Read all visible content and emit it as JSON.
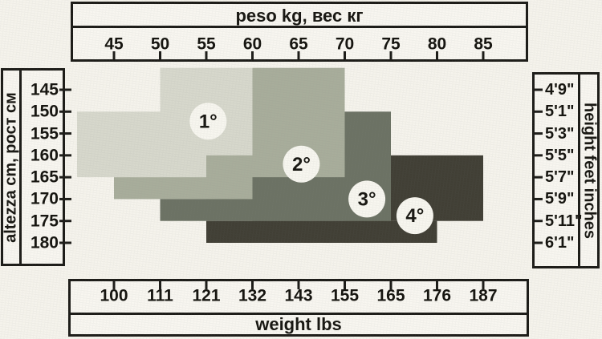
{
  "page": {
    "background": "#f5f3ec",
    "line_color": "#1c1b17",
    "text_color": "#171611",
    "circle_fill": "#f7f6ef"
  },
  "chart_data": {
    "type": "area",
    "title": "peso kg, вес кг",
    "description_visible_text_only": "overlapping stepped size regions 1°-4° on weight(kg/lbs) x height(cm/feet) grid",
    "top_axis": {
      "title": "peso kg, вес кг",
      "unit": "kg",
      "ticks": [
        45,
        50,
        55,
        60,
        65,
        70,
        75,
        80,
        85
      ]
    },
    "bottom_axis": {
      "label": "weight lbs",
      "unit": "lbs",
      "ticks": [
        100,
        111,
        121,
        132,
        143,
        155,
        165,
        176,
        187
      ]
    },
    "left_axis": {
      "label": "altezza cm, рост см",
      "unit": "cm",
      "ticks": [
        145,
        150,
        155,
        160,
        165,
        170,
        175,
        180
      ]
    },
    "right_axis": {
      "label": "height feet inches",
      "unit": "ft-in",
      "ticks": [
        "4'9\"",
        "5'1\"",
        "5'3\"",
        "5'5\"",
        "5'7\"",
        "5'9\"",
        "5'11\"",
        "6'1\""
      ]
    },
    "axis_ranges": {
      "kg": [
        45,
        85
      ],
      "cm": [
        145,
        180
      ]
    },
    "grid": false,
    "sizes": [
      {
        "label": "1°",
        "color": "#d7d8cc",
        "circle": {
          "kg": 55.2,
          "cm": 152.2
        },
        "regions": [
          {
            "kg": [
              50,
              60
            ],
            "cm": [
              140,
              165
            ]
          },
          {
            "kg": [
              41,
              60
            ],
            "cm": [
              150,
              165
            ]
          }
        ]
      },
      {
        "label": "2°",
        "color": "#a8ad9b",
        "circle": {
          "kg": 65.3,
          "cm": 162.0
        },
        "regions": [
          {
            "kg": [
              60,
              70
            ],
            "cm": [
              140,
              170
            ]
          },
          {
            "kg": [
              55,
              70
            ],
            "cm": [
              160,
              170
            ]
          },
          {
            "kg": [
              45,
              70
            ],
            "cm": [
              165,
              170
            ]
          }
        ]
      },
      {
        "label": "3°",
        "color": "#6c7264",
        "circle": {
          "kg": 72.4,
          "cm": 170.0
        },
        "regions": [
          {
            "kg": [
              70,
              75
            ],
            "cm": [
              150,
              175
            ]
          },
          {
            "kg": [
              60,
              75
            ],
            "cm": [
              165,
              175
            ]
          },
          {
            "kg": [
              50,
              75
            ],
            "cm": [
              170,
              175
            ]
          }
        ]
      },
      {
        "label": "4°",
        "color": "#413f35",
        "circle": {
          "kg": 77.6,
          "cm": 173.8
        },
        "regions": [
          {
            "kg": [
              75,
              85
            ],
            "cm": [
              160,
              175
            ]
          },
          {
            "kg": [
              55,
              80
            ],
            "cm": [
              175,
              180
            ]
          }
        ]
      }
    ]
  }
}
